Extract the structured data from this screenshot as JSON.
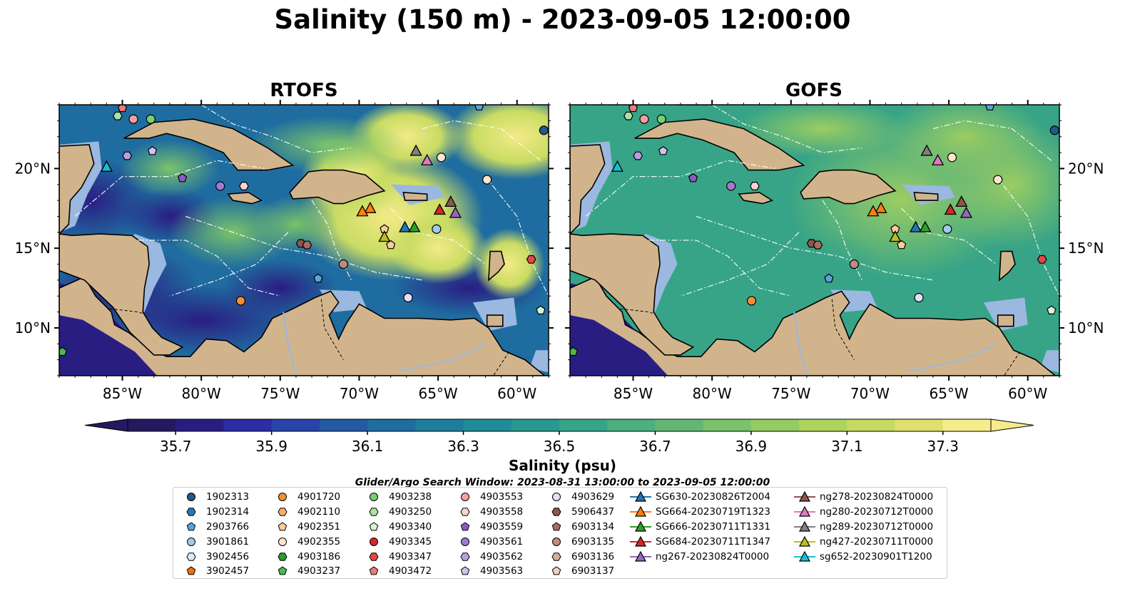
{
  "title": "Salinity (150 m) - 2023-09-05 12:00:00",
  "panels": [
    {
      "name": "RTOFS"
    },
    {
      "name": "GOFS"
    }
  ],
  "axes": {
    "lon_ticks": [
      "85°W",
      "80°W",
      "75°W",
      "70°W",
      "65°W",
      "60°W"
    ],
    "lat_ticks": [
      "20°N",
      "15°N",
      "10°N"
    ],
    "lon_range": [
      -89,
      -58
    ],
    "lat_range": [
      7,
      24
    ]
  },
  "colorbar": {
    "label": "Salinity (psu)",
    "range": [
      35.6,
      37.4
    ],
    "step": 0.1,
    "ticks": [
      "35.7",
      "35.9",
      "36.1",
      "36.3",
      "36.5",
      "36.7",
      "36.9",
      "37.1",
      "37.3"
    ],
    "colors": [
      "#26185f",
      "#2a1d82",
      "#2c2da3",
      "#2944a8",
      "#245aa4",
      "#1f6da0",
      "#1e7d9c",
      "#218b98",
      "#2a9890",
      "#37a487",
      "#4caf7d",
      "#62b873",
      "#7ac36a",
      "#94cb63",
      "#aed35f",
      "#c6da62",
      "#dfe06e",
      "#f5ec8c"
    ]
  },
  "legend": {
    "title": "Glider/Argo Search Window: 2023-08-31 13:00:00 to 2023-09-05 12:00:00",
    "columns": [
      [
        {
          "label": "1902313",
          "marker": "circle",
          "color": "#1f5b8c"
        },
        {
          "label": "1902314",
          "marker": "hexagon",
          "color": "#2b78b5"
        },
        {
          "label": "2903766",
          "marker": "pentagon",
          "color": "#5ba3d6"
        },
        {
          "label": "3901861",
          "marker": "circle",
          "color": "#9ecbee"
        },
        {
          "label": "3902456",
          "marker": "hexagon",
          "color": "#dbeafa"
        },
        {
          "label": "3902457",
          "marker": "pentagon",
          "color": "#f06f0e"
        }
      ],
      [
        {
          "label": "4901720",
          "marker": "circle",
          "color": "#f58f32"
        },
        {
          "label": "4902110",
          "marker": "hexagon",
          "color": "#f9ad6d"
        },
        {
          "label": "4902351",
          "marker": "pentagon",
          "color": "#fbcb98"
        },
        {
          "label": "4902355",
          "marker": "circle",
          "color": "#fde6cc"
        },
        {
          "label": "4903186",
          "marker": "hexagon",
          "color": "#2c9a2c"
        },
        {
          "label": "4903237",
          "marker": "pentagon",
          "color": "#4db84d"
        }
      ],
      [
        {
          "label": "4903238",
          "marker": "circle",
          "color": "#74d074"
        },
        {
          "label": "4903250",
          "marker": "hexagon",
          "color": "#a8e3a2"
        },
        {
          "label": "4903340",
          "marker": "pentagon",
          "color": "#d8f3d0"
        },
        {
          "label": "4903345",
          "marker": "circle",
          "color": "#d62728"
        },
        {
          "label": "4903347",
          "marker": "hexagon",
          "color": "#e04848"
        },
        {
          "label": "4903472",
          "marker": "pentagon",
          "color": "#ee7b7b"
        }
      ],
      [
        {
          "label": "4903553",
          "marker": "circle",
          "color": "#f4a0a0"
        },
        {
          "label": "4903558",
          "marker": "hexagon",
          "color": "#fad1d1"
        },
        {
          "label": "4903559",
          "marker": "pentagon",
          "color": "#8a5cc0"
        },
        {
          "label": "4903561",
          "marker": "circle",
          "color": "#a07ad0"
        },
        {
          "label": "4903562",
          "marker": "hexagon",
          "color": "#bb9ee0"
        },
        {
          "label": "4903563",
          "marker": "pentagon",
          "color": "#d3bff0"
        }
      ],
      [
        {
          "label": "4903629",
          "marker": "circle",
          "color": "#e8dcf8"
        },
        {
          "label": "5906437",
          "marker": "hexagon",
          "color": "#8c564b"
        },
        {
          "label": "6903134",
          "marker": "pentagon",
          "color": "#a46e62"
        },
        {
          "label": "6903135",
          "marker": "circle",
          "color": "#bd8c7e"
        },
        {
          "label": "6903136",
          "marker": "hexagon",
          "color": "#d6ac9e"
        },
        {
          "label": "6903137",
          "marker": "pentagon",
          "color": "#f0d0c2"
        }
      ],
      [
        {
          "label": "SG630-20230826T2004",
          "marker": "tri-line",
          "color": "#1f77b4"
        },
        {
          "label": "SG664-20230719T1323",
          "marker": "tri-line",
          "color": "#ff7f0e"
        },
        {
          "label": "SG666-20230711T1331",
          "marker": "tri-line",
          "color": "#2ca02c"
        },
        {
          "label": "SG684-20230711T1347",
          "marker": "tri-line",
          "color": "#d62728"
        },
        {
          "label": "ng267-20230824T0000",
          "marker": "tri-line",
          "color": "#9467bd"
        }
      ],
      [
        {
          "label": "ng278-20230824T0000",
          "marker": "tri-line",
          "color": "#8c564b"
        },
        {
          "label": "ng280-20230712T0000",
          "marker": "tri-line",
          "color": "#e377c2"
        },
        {
          "label": "ng289-20230712T0000",
          "marker": "tri-line",
          "color": "#7f7f7f"
        },
        {
          "label": "ng427-20230711T0000",
          "marker": "tri-line",
          "color": "#bcbd22"
        },
        {
          "label": "sg652-20230901T1200",
          "marker": "tri-line",
          "color": "#17becf"
        }
      ]
    ]
  }
}
